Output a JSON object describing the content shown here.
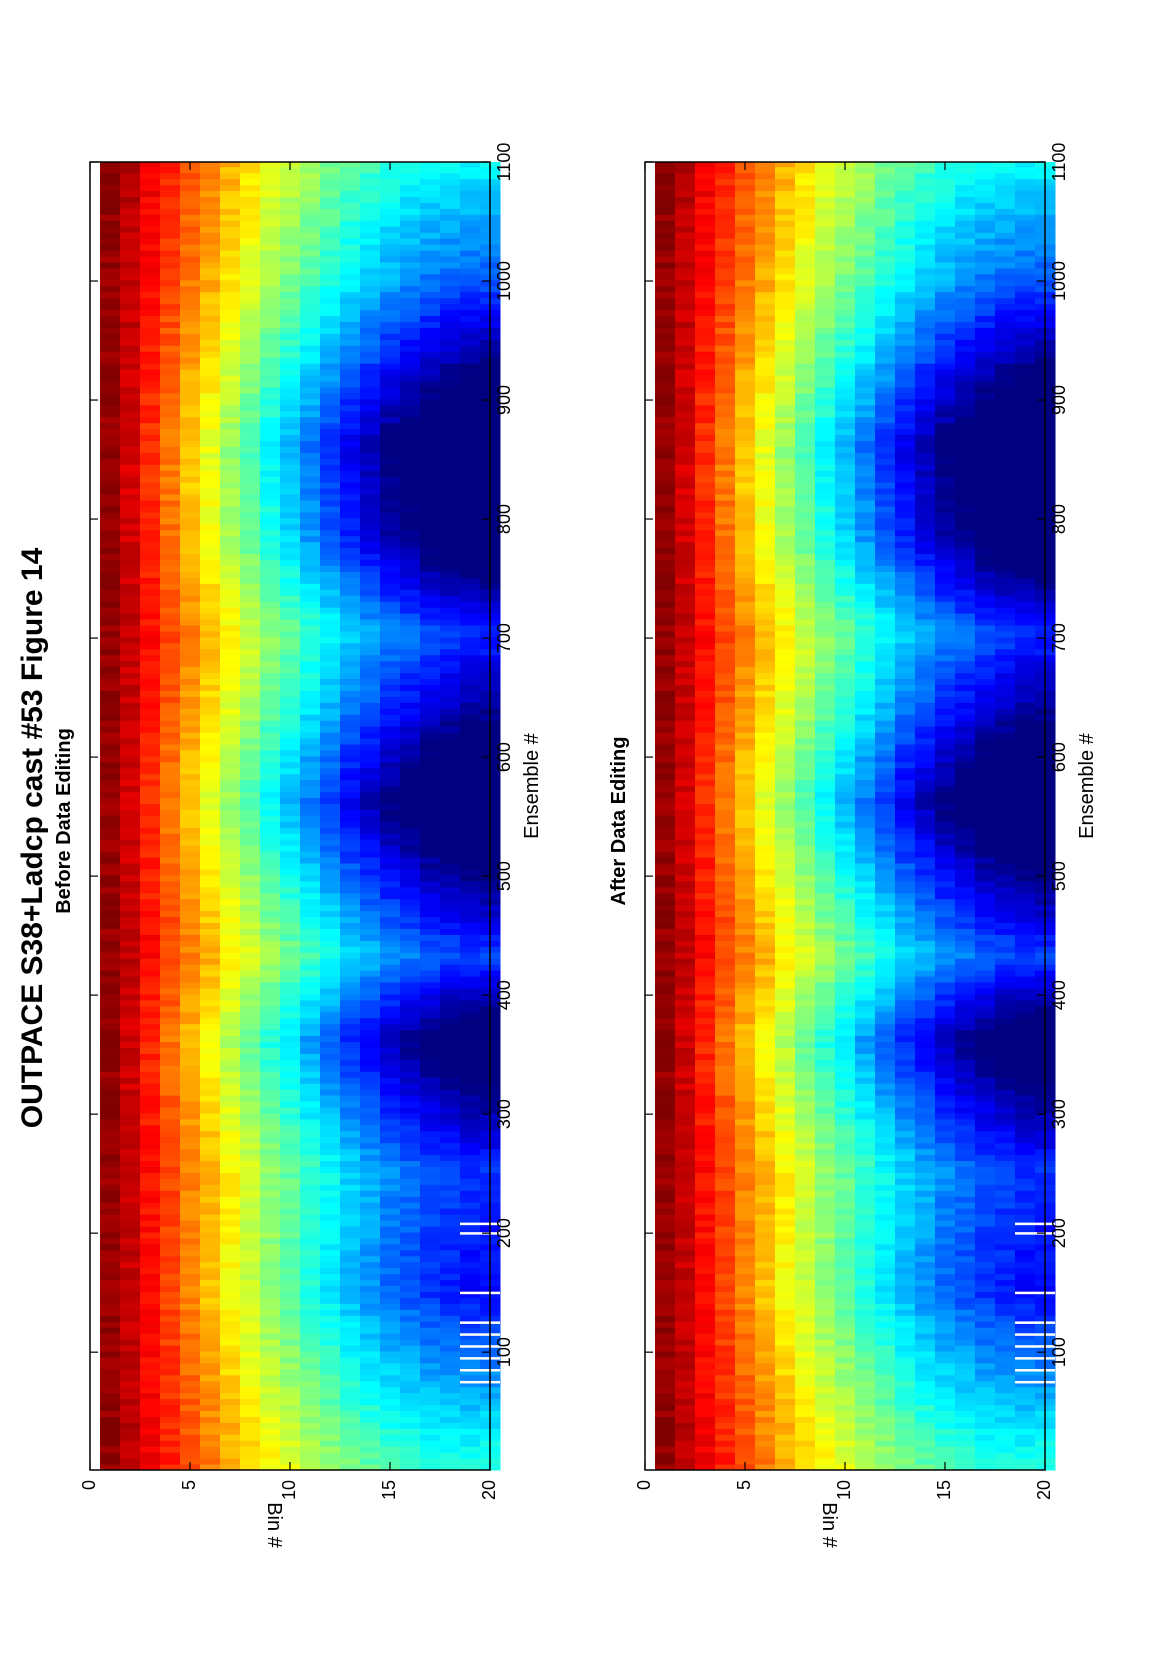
{
  "figure": {
    "title": "OUTPACE S38+Ladcp cast #53  Figure 14",
    "orientation": "rotated-90-ccw"
  },
  "chart_data": [
    {
      "type": "heatmap",
      "title": "Before Data Editing",
      "xlabel": "Ensemble #",
      "ylabel": "Bin #",
      "xlim": [
        1,
        1100
      ],
      "ylim": [
        0,
        20
      ],
      "y_reversed": true,
      "xticks": [
        100,
        200,
        300,
        400,
        500,
        600,
        700,
        800,
        900,
        1000,
        1100
      ],
      "yticks": [
        0,
        5,
        10,
        15,
        20
      ],
      "colormap": "jet",
      "bins": 20,
      "clim": [
        0,
        1
      ],
      "profile_nodes": {
        "x": [
          1,
          150,
          250,
          360,
          430,
          560,
          640,
          700,
          780,
          860,
          1000,
          1100
        ],
        "depth": [
          0.08,
          0.34,
          0.3,
          0.55,
          0.28,
          0.62,
          0.42,
          0.3,
          0.55,
          0.62,
          0.26,
          0.12
        ]
      },
      "intensity_by_bin": [
        0.98,
        0.93,
        0.86,
        0.8,
        0.74,
        0.68,
        0.62,
        0.56,
        0.5,
        0.45,
        0.4,
        0.35,
        0.3,
        0.26,
        0.22,
        0.19,
        0.16,
        0.14,
        0.12,
        0.11
      ],
      "flagged_ensembles": [
        75,
        85,
        95,
        105,
        115,
        125,
        150,
        200,
        208
      ]
    },
    {
      "type": "heatmap",
      "title": "After Data Editing",
      "xlabel": "Ensemble #",
      "ylabel": "Bin #",
      "xlim": [
        1,
        1100
      ],
      "ylim": [
        0,
        20
      ],
      "y_reversed": true,
      "xticks": [
        100,
        200,
        300,
        400,
        500,
        600,
        700,
        800,
        900,
        1000,
        1100
      ],
      "yticks": [
        0,
        5,
        10,
        15,
        20
      ],
      "colormap": "jet",
      "bins": 20,
      "clim": [
        0,
        1
      ],
      "profile_nodes": {
        "x": [
          1,
          150,
          250,
          360,
          430,
          560,
          640,
          700,
          780,
          860,
          1000,
          1100
        ],
        "depth": [
          0.08,
          0.34,
          0.3,
          0.55,
          0.28,
          0.62,
          0.42,
          0.3,
          0.55,
          0.62,
          0.26,
          0.12
        ]
      },
      "intensity_by_bin": [
        0.98,
        0.93,
        0.86,
        0.8,
        0.74,
        0.68,
        0.62,
        0.56,
        0.5,
        0.45,
        0.4,
        0.35,
        0.3,
        0.26,
        0.22,
        0.19,
        0.16,
        0.14,
        0.12,
        0.11
      ],
      "flagged_ensembles": [
        75,
        85,
        95,
        105,
        115,
        125,
        150,
        200,
        208
      ]
    }
  ]
}
